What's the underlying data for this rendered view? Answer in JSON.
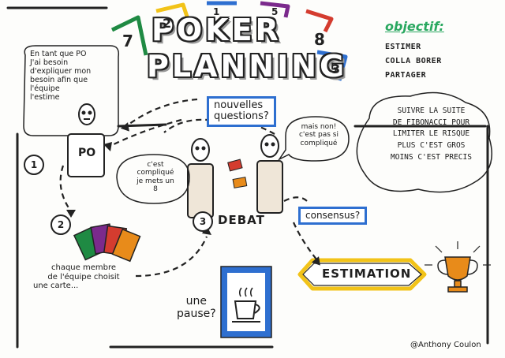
{
  "title": {
    "line1": "POKER",
    "line2": "PLANNING"
  },
  "title_cards": [
    "7",
    "2",
    "1",
    "5",
    "8",
    "3"
  ],
  "objective": {
    "heading": "objectif:",
    "items": [
      "ESTIMER",
      "COLLA BORER",
      "PARTAGER"
    ]
  },
  "po_bubble": [
    "En tant que PO",
    "J'ai besoin",
    "d'expliquer mon",
    "besoin afin que",
    "l'équipe",
    "l'estime"
  ],
  "po_label": "PO",
  "new_questions": [
    "nouvelles",
    "questions?"
  ],
  "fibonacci_note": [
    "SUIVRE LA SUITE",
    "DE FIBONACCI POUR",
    "LIMITER LE RISQUE",
    "PLUS C'EST GROS",
    "MOINS C'EST PRECIS"
  ],
  "dev_bubble_left": [
    "c'est",
    "compliqué",
    "je mets un",
    "8"
  ],
  "dev_bubble_right": [
    "mais non!",
    "c'est pas si",
    "compliqué"
  ],
  "steps": [
    "1",
    "2",
    "3"
  ],
  "debate_label": "DEBAT",
  "consensus_label": "consensus?",
  "choose_card": [
    "chaque membre",
    "de l'équipe choisit",
    "une carte..."
  ],
  "estimation_label": "ESTIMATION",
  "pause_label": [
    "une",
    "pause?"
  ],
  "author": "@Anthony Coulon",
  "colors": {
    "green": "#1f8a43",
    "blue": "#2e6fd0",
    "yellow": "#f2c318",
    "purple": "#7b2a8c",
    "red": "#d43c2f",
    "orange": "#e88b1a"
  }
}
